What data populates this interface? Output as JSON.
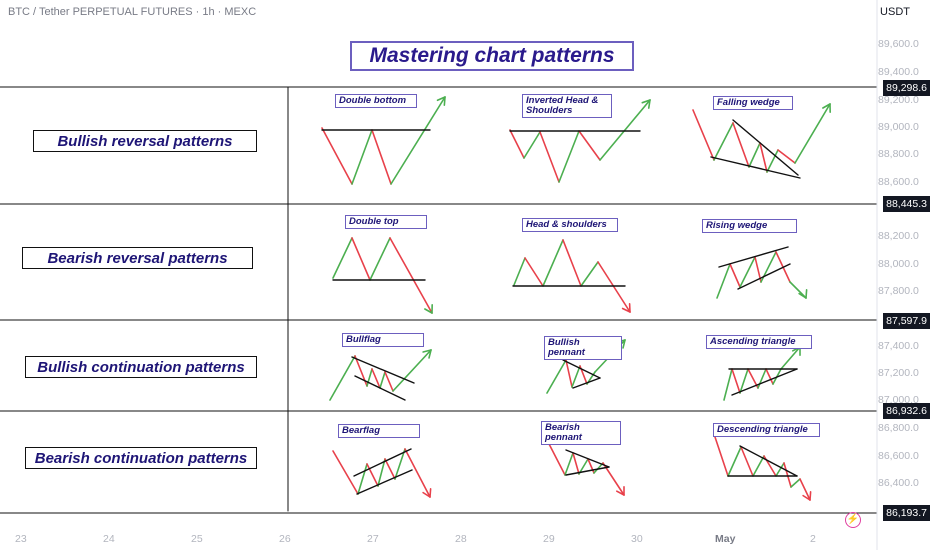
{
  "header": {
    "symbol": "BTC / Tether PERPETUAL FUTURES · 1h · MEXC",
    "currency": "USDT"
  },
  "title": "Mastering chart patterns",
  "categories": [
    {
      "label": "Bullish reversal patterns"
    },
    {
      "label": "Bearish reversal patterns"
    },
    {
      "label": "Bullish continuation patterns"
    },
    {
      "label": "Bearish continuation patterns"
    }
  ],
  "patterns": [
    {
      "label": "Double bottom"
    },
    {
      "label": "Inverted Head & Shoulders"
    },
    {
      "label": "Falling wedge"
    },
    {
      "label": "Double top"
    },
    {
      "label": "Head & shoulders"
    },
    {
      "label": "Rising wedge"
    },
    {
      "label": "Bullflag"
    },
    {
      "label": "Bullish pennant"
    },
    {
      "label": "Ascending triangle"
    },
    {
      "label": "Bearflag"
    },
    {
      "label": "Bearish pennant"
    },
    {
      "label": "Descending triangle"
    }
  ],
  "colors": {
    "bullish": "#4caf50",
    "bearish": "#e8414b",
    "title_border": "#6c5fbf",
    "text": "#1e1576"
  },
  "price_axis": {
    "ticks": [
      "89,600.0",
      "89,400.0",
      "89,200.0",
      "89,000.0",
      "88,800.0",
      "88,600.0",
      "88,200.0",
      "88,000.0",
      "87,800.0",
      "87,400.0",
      "87,200.0",
      "87,000.0",
      "86,800.0",
      "86,600.0",
      "86,400.0"
    ],
    "levels": [
      "89,298.6",
      "88,445.3",
      "87,597.9",
      "86,932.6",
      "86,193.7"
    ]
  },
  "time_axis": {
    "labels": [
      "23",
      "24",
      "25",
      "26",
      "27",
      "28",
      "29",
      "30",
      "May",
      "2"
    ]
  },
  "chart_data": {
    "type": "line",
    "title": "Mastering chart patterns",
    "ylim": [
      86100,
      89800
    ],
    "horizontal_levels": [
      89298.6,
      88445.3,
      87597.9,
      86932.6,
      86193.7
    ],
    "x_ticks": [
      "23",
      "24",
      "25",
      "26",
      "27",
      "28",
      "29",
      "30",
      "May",
      "2"
    ],
    "y_ticks": [
      89600,
      89400,
      89200,
      89000,
      88800,
      88600,
      88200,
      88000,
      87800,
      87400,
      87200,
      87000,
      86800,
      86600,
      86400
    ]
  }
}
